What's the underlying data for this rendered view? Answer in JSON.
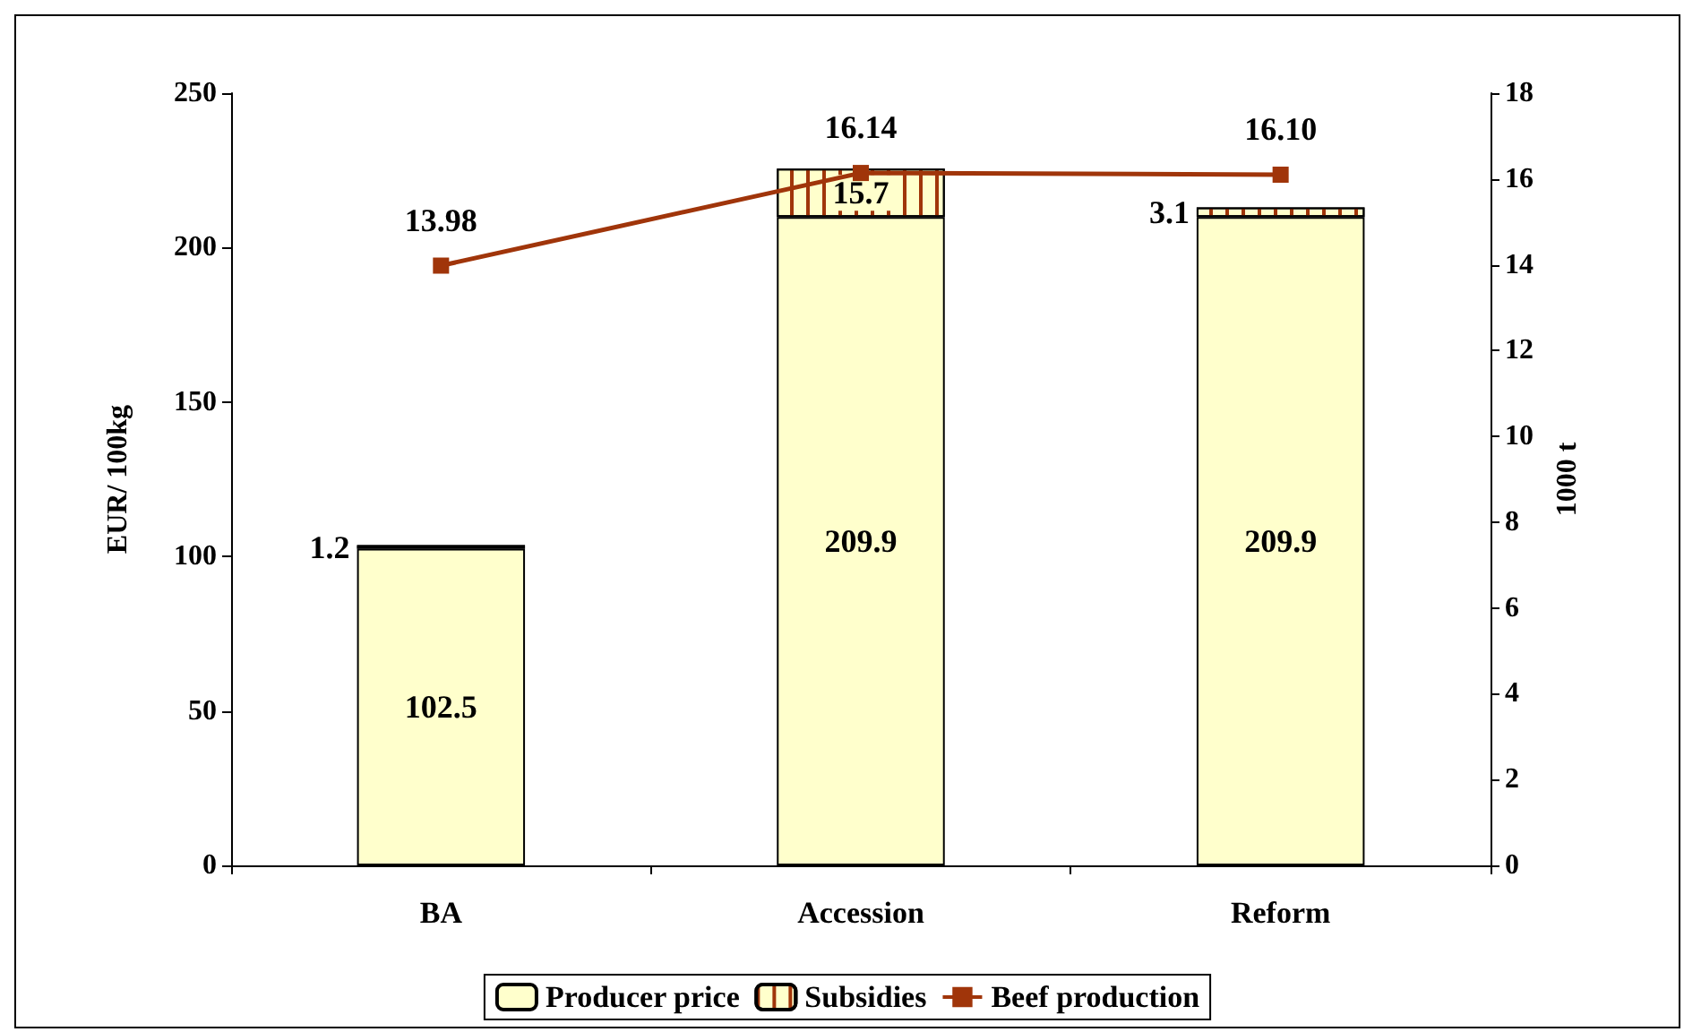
{
  "chart_data": {
    "type": "bar",
    "stacked": true,
    "categories": [
      "BA",
      "Accession",
      "Reform"
    ],
    "ylabel": "EUR/ 100kg",
    "y2label": "1000 t",
    "ylim": [
      0,
      250
    ],
    "yticks": [
      0,
      50,
      100,
      150,
      200,
      250
    ],
    "y2lim": [
      0,
      18
    ],
    "y2ticks": [
      0,
      2,
      4,
      6,
      8,
      10,
      12,
      14,
      16,
      18
    ],
    "data_labels": true,
    "legend": "bottom",
    "grid": false,
    "marker": "square",
    "series": [
      {
        "name": "Producer price",
        "color": "#ffffcc",
        "values": [
          102.5,
          209.9,
          209.9
        ]
      },
      {
        "name": "Subsidies",
        "color": "#ffffcc",
        "values": [
          1.2,
          15.7,
          3.1
        ]
      },
      {
        "name": "Beef production",
        "type": "line",
        "axis": "y2",
        "color": "#a0350a",
        "values": [
          13.98,
          16.14,
          16.1
        ],
        "value_labels": [
          "13.98",
          "16.14",
          "16.10"
        ]
      }
    ]
  }
}
